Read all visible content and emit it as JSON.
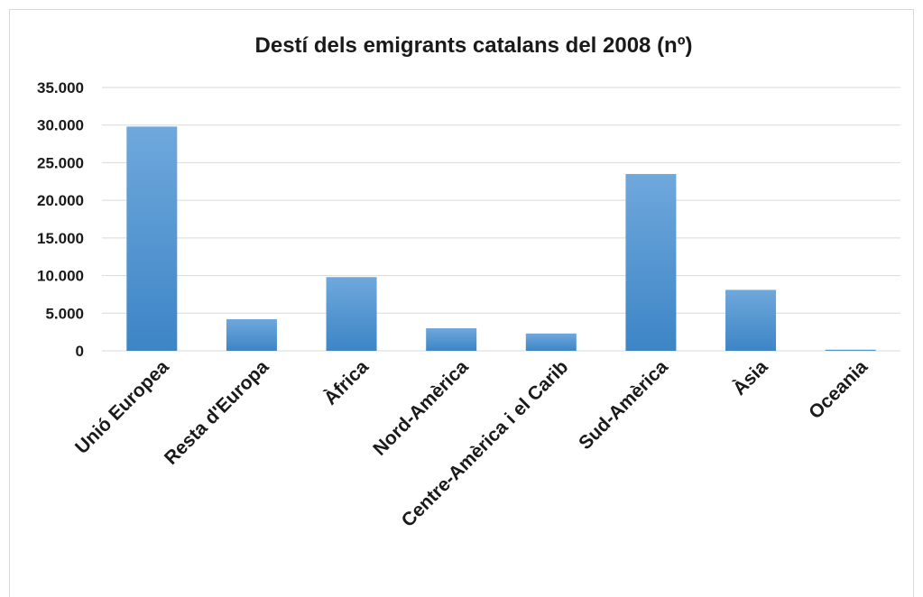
{
  "chart_data": {
    "type": "bar",
    "title": "Destí dels emigrants catalans del 2008 (nº)",
    "xlabel": "",
    "ylabel": "",
    "categories": [
      "Unió Europea",
      "Resta d'Europa",
      "Àfrica",
      "Nord-Amèrica",
      "Centre-Amèrica i el Carib",
      "Sud-Amèrica",
      "Àsia",
      "Oceania"
    ],
    "values": [
      29800,
      4200,
      9800,
      3000,
      2300,
      23500,
      8100,
      150
    ],
    "ylim": [
      0,
      35000
    ],
    "yticks": [
      0,
      5000,
      10000,
      15000,
      20000,
      25000,
      30000,
      35000
    ],
    "ytick_labels": [
      "0",
      "5.000",
      "10.000",
      "15.000",
      "20.000",
      "25.000",
      "30.000",
      "35.000"
    ],
    "grid": true,
    "legend": "none",
    "bar_color_top": "#6fa8dc",
    "bar_color_bottom": "#3d85c6",
    "grid_color": "#d9d9d9"
  }
}
